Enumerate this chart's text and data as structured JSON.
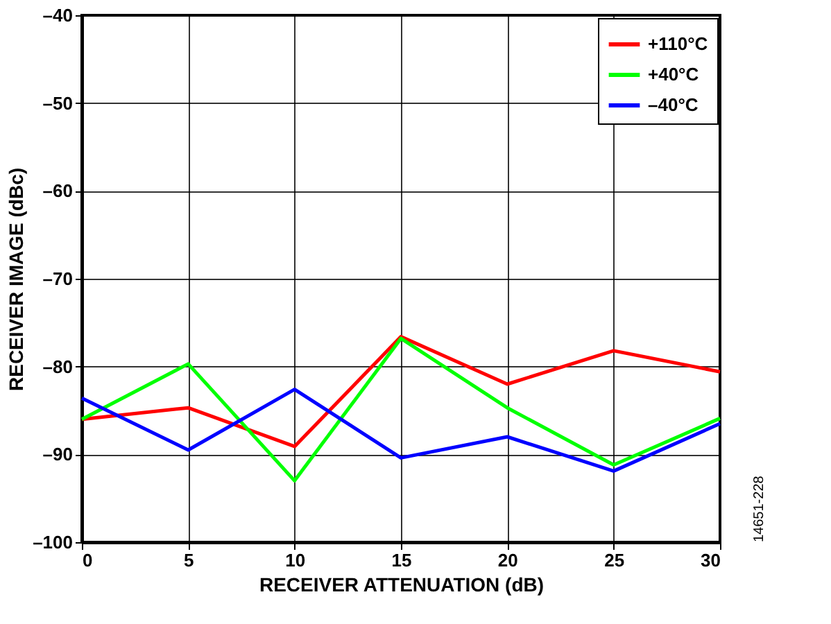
{
  "chart_data": {
    "type": "line",
    "xlabel": "RECEIVER ATTENUATION (dB)",
    "ylabel": "RECEIVER IMAGE (dBc)",
    "x": [
      0,
      5,
      10,
      15,
      20,
      25,
      30
    ],
    "series": [
      {
        "name": "+110°C",
        "color": "#ff0000",
        "values": [
          -86.0,
          -84.7,
          -89.1,
          -76.6,
          -82.0,
          -78.2,
          -80.6
        ]
      },
      {
        "name": "+40°C",
        "color": "#00ff00",
        "values": [
          -86.0,
          -79.7,
          -93.0,
          -76.8,
          -84.7,
          -91.2,
          -85.9
        ]
      },
      {
        "name": "–40°C",
        "color": "#0000ff",
        "values": [
          -83.6,
          -89.5,
          -82.6,
          -90.4,
          -88.0,
          -91.9,
          -86.5
        ]
      }
    ],
    "xlim": [
      0,
      30
    ],
    "xticks": [
      0,
      5,
      10,
      15,
      20,
      25,
      30
    ],
    "ylim": [
      -100,
      -40
    ],
    "yticks": [
      {
        "value": -100,
        "label": "–100"
      },
      {
        "value": -90,
        "label": "–90"
      },
      {
        "value": -80,
        "label": "–80"
      },
      {
        "value": -70,
        "label": "–70"
      },
      {
        "value": -60,
        "label": "–60"
      },
      {
        "value": -50,
        "label": "–50"
      },
      {
        "value": -40,
        "label": "–40"
      }
    ],
    "grid": true,
    "legend": "top right",
    "line_style": "solid",
    "marker": "none",
    "annotations": [
      "14651-228"
    ]
  }
}
